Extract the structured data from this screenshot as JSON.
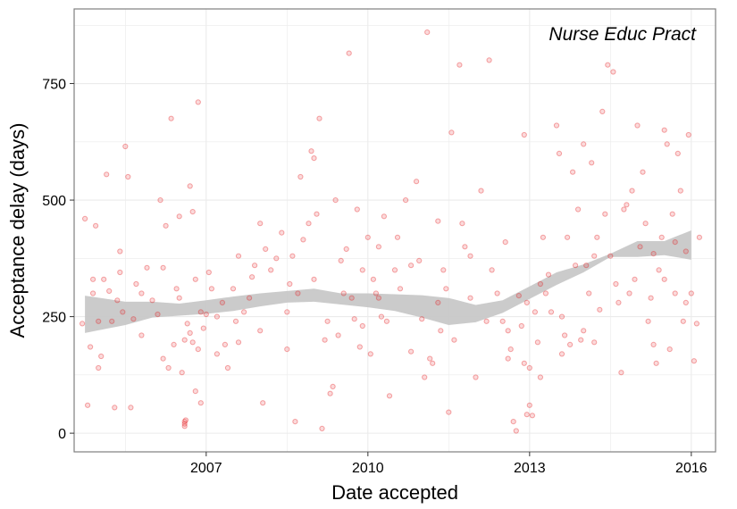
{
  "chart_data": {
    "type": "scatter",
    "title": "",
    "annotation": "Nurse Educ Pract",
    "xlabel": "Date accepted",
    "ylabel": "Acceptance delay (days)",
    "xlim": [
      2004.55,
      2016.45
    ],
    "ylim": [
      -40,
      910
    ],
    "x_ticks": [
      2007,
      2010,
      2013,
      2016
    ],
    "x_tick_labels": [
      "2007",
      "2010",
      "2013",
      "2016"
    ],
    "y_ticks": [
      0,
      250,
      500,
      750
    ],
    "y_tick_labels": [
      "0",
      "250",
      "500",
      "750"
    ],
    "grid": true,
    "legend": "none",
    "colors": {
      "points": "#e41a1c",
      "smooth_band": "#c8c8c8",
      "panel_border": "#7f7f7f",
      "grid": "#ebebeb"
    },
    "series": [
      {
        "points": [
          [
            2004.7,
            235
          ],
          [
            2004.75,
            460
          ],
          [
            2004.8,
            60
          ],
          [
            2004.85,
            185
          ],
          [
            2004.9,
            300
          ],
          [
            2004.95,
            445
          ],
          [
            2005.0,
            140
          ],
          [
            2005.05,
            165
          ],
          [
            2005.1,
            330
          ],
          [
            2005.15,
            555
          ],
          [
            2005.2,
            305
          ],
          [
            2005.25,
            240
          ],
          [
            2005.3,
            55
          ],
          [
            2005.35,
            285
          ],
          [
            2005.4,
            345
          ],
          [
            2005.45,
            260
          ],
          [
            2005.5,
            615
          ],
          [
            2005.55,
            550
          ],
          [
            2005.6,
            55
          ],
          [
            2005.65,
            245
          ],
          [
            2005.7,
            320
          ],
          [
            2005.8,
            300
          ],
          [
            2005.9,
            355
          ],
          [
            2006.0,
            285
          ],
          [
            2006.1,
            255
          ],
          [
            2006.15,
            500
          ],
          [
            2006.2,
            355
          ],
          [
            2006.25,
            445
          ],
          [
            2006.3,
            140
          ],
          [
            2006.35,
            675
          ],
          [
            2006.4,
            190
          ],
          [
            2006.45,
            310
          ],
          [
            2006.5,
            465
          ],
          [
            2006.55,
            130
          ],
          [
            2006.6,
            200
          ],
          [
            2006.65,
            235
          ],
          [
            2006.7,
            530
          ],
          [
            2006.75,
            195
          ],
          [
            2006.8,
            90
          ],
          [
            2006.85,
            180
          ],
          [
            2006.9,
            65
          ],
          [
            2006.95,
            225
          ],
          [
            2007.0,
            255
          ],
          [
            2007.05,
            345
          ],
          [
            2006.6,
            25
          ],
          [
            2006.6,
            20
          ],
          [
            2006.6,
            15
          ],
          [
            2006.62,
            28
          ],
          [
            2006.7,
            215
          ],
          [
            2006.75,
            475
          ],
          [
            2006.8,
            330
          ],
          [
            2006.85,
            710
          ],
          [
            2006.9,
            260
          ],
          [
            2007.1,
            310
          ],
          [
            2007.2,
            250
          ],
          [
            2007.3,
            280
          ],
          [
            2007.35,
            190
          ],
          [
            2007.4,
            140
          ],
          [
            2007.5,
            310
          ],
          [
            2007.55,
            240
          ],
          [
            2007.6,
            195
          ],
          [
            2007.7,
            260
          ],
          [
            2007.8,
            290
          ],
          [
            2007.85,
            335
          ],
          [
            2007.9,
            360
          ],
          [
            2008.0,
            450
          ],
          [
            2008.05,
            65
          ],
          [
            2008.1,
            395
          ],
          [
            2008.2,
            350
          ],
          [
            2008.3,
            375
          ],
          [
            2008.4,
            430
          ],
          [
            2008.5,
            260
          ],
          [
            2008.55,
            320
          ],
          [
            2008.6,
            380
          ],
          [
            2008.65,
            25
          ],
          [
            2008.7,
            300
          ],
          [
            2008.75,
            550
          ],
          [
            2008.8,
            415
          ],
          [
            2008.9,
            450
          ],
          [
            2008.95,
            605
          ],
          [
            2009.0,
            590
          ],
          [
            2009.05,
            470
          ],
          [
            2009.1,
            675
          ],
          [
            2009.15,
            10
          ],
          [
            2009.2,
            200
          ],
          [
            2009.25,
            240
          ],
          [
            2009.3,
            85
          ],
          [
            2009.35,
            100
          ],
          [
            2009.4,
            500
          ],
          [
            2009.45,
            210
          ],
          [
            2009.5,
            370
          ],
          [
            2009.55,
            300
          ],
          [
            2009.6,
            395
          ],
          [
            2009.65,
            815
          ],
          [
            2009.7,
            290
          ],
          [
            2009.75,
            245
          ],
          [
            2009.8,
            480
          ],
          [
            2009.85,
            185
          ],
          [
            2009.9,
            350
          ],
          [
            2010.0,
            420
          ],
          [
            2010.05,
            170
          ],
          [
            2010.1,
            330
          ],
          [
            2010.15,
            300
          ],
          [
            2010.2,
            400
          ],
          [
            2010.25,
            250
          ],
          [
            2010.3,
            465
          ],
          [
            2010.35,
            240
          ],
          [
            2010.4,
            80
          ],
          [
            2010.5,
            350
          ],
          [
            2010.55,
            420
          ],
          [
            2010.6,
            310
          ],
          [
            2010.7,
            500
          ],
          [
            2010.8,
            175
          ],
          [
            2010.9,
            540
          ],
          [
            2010.95,
            370
          ],
          [
            2011.0,
            245
          ],
          [
            2011.05,
            120
          ],
          [
            2011.1,
            860
          ],
          [
            2011.15,
            160
          ],
          [
            2011.2,
            150
          ],
          [
            2011.3,
            455
          ],
          [
            2011.35,
            220
          ],
          [
            2011.4,
            350
          ],
          [
            2011.45,
            310
          ],
          [
            2011.5,
            45
          ],
          [
            2011.55,
            645
          ],
          [
            2011.6,
            200
          ],
          [
            2011.7,
            790
          ],
          [
            2011.75,
            450
          ],
          [
            2011.8,
            400
          ],
          [
            2011.9,
            290
          ],
          [
            2012.0,
            120
          ],
          [
            2012.1,
            520
          ],
          [
            2012.2,
            240
          ],
          [
            2012.25,
            800
          ],
          [
            2012.3,
            350
          ],
          [
            2012.4,
            300
          ],
          [
            2012.5,
            240
          ],
          [
            2012.55,
            410
          ],
          [
            2012.6,
            160
          ],
          [
            2012.65,
            180
          ],
          [
            2012.7,
            25
          ],
          [
            2012.75,
            5
          ],
          [
            2012.8,
            295
          ],
          [
            2012.85,
            230
          ],
          [
            2012.9,
            640
          ],
          [
            2012.95,
            280
          ],
          [
            2013.0,
            140
          ],
          [
            2013.05,
            38
          ],
          [
            2013.1,
            260
          ],
          [
            2013.15,
            195
          ],
          [
            2013.2,
            120
          ],
          [
            2013.25,
            420
          ],
          [
            2013.3,
            300
          ],
          [
            2013.35,
            340
          ],
          [
            2013.4,
            260
          ],
          [
            2013.5,
            660
          ],
          [
            2013.55,
            600
          ],
          [
            2013.6,
            170
          ],
          [
            2013.65,
            210
          ],
          [
            2013.7,
            420
          ],
          [
            2013.75,
            190
          ],
          [
            2013.8,
            560
          ],
          [
            2013.85,
            360
          ],
          [
            2013.9,
            480
          ],
          [
            2013.95,
            200
          ],
          [
            2014.0,
            620
          ],
          [
            2014.05,
            360
          ],
          [
            2014.1,
            300
          ],
          [
            2014.15,
            580
          ],
          [
            2014.2,
            195
          ],
          [
            2014.25,
            420
          ],
          [
            2014.3,
            265
          ],
          [
            2014.35,
            690
          ],
          [
            2014.4,
            470
          ],
          [
            2014.45,
            790
          ],
          [
            2014.5,
            380
          ],
          [
            2014.55,
            775
          ],
          [
            2014.6,
            320
          ],
          [
            2014.65,
            280
          ],
          [
            2014.7,
            130
          ],
          [
            2014.75,
            480
          ],
          [
            2014.8,
            490
          ],
          [
            2014.85,
            300
          ],
          [
            2014.9,
            520
          ],
          [
            2014.95,
            330
          ],
          [
            2015.0,
            660
          ],
          [
            2015.05,
            400
          ],
          [
            2015.1,
            560
          ],
          [
            2015.15,
            450
          ],
          [
            2015.2,
            240
          ],
          [
            2015.25,
            290
          ],
          [
            2015.3,
            190
          ],
          [
            2015.35,
            150
          ],
          [
            2015.4,
            350
          ],
          [
            2015.45,
            420
          ],
          [
            2015.5,
            650
          ],
          [
            2015.55,
            620
          ],
          [
            2015.6,
            180
          ],
          [
            2015.65,
            470
          ],
          [
            2015.7,
            300
          ],
          [
            2015.75,
            600
          ],
          [
            2015.8,
            520
          ],
          [
            2015.85,
            240
          ],
          [
            2015.9,
            390
          ],
          [
            2015.95,
            640
          ],
          [
            2016.0,
            300
          ],
          [
            2016.05,
            155
          ],
          [
            2016.1,
            235
          ],
          [
            2016.15,
            420
          ],
          [
            2015.3,
            385
          ],
          [
            2015.5,
            330
          ],
          [
            2015.7,
            410
          ],
          [
            2015.9,
            280
          ],
          [
            2014.0,
            220
          ],
          [
            2014.2,
            380
          ],
          [
            2013.2,
            320
          ],
          [
            2013.6,
            250
          ],
          [
            2012.6,
            220
          ],
          [
            2012.9,
            150
          ],
          [
            2012.95,
            40
          ],
          [
            2013.0,
            60
          ],
          [
            2011.9,
            380
          ],
          [
            2011.3,
            280
          ],
          [
            2010.8,
            360
          ],
          [
            2010.2,
            290
          ],
          [
            2009.9,
            230
          ],
          [
            2009.0,
            330
          ],
          [
            2008.5,
            180
          ],
          [
            2008.0,
            220
          ],
          [
            2007.6,
            380
          ],
          [
            2007.2,
            170
          ],
          [
            2006.5,
            290
          ],
          [
            2006.2,
            160
          ],
          [
            2005.8,
            210
          ],
          [
            2005.4,
            390
          ],
          [
            2005.0,
            240
          ],
          [
            2004.9,
            330
          ]
        ]
      }
    ],
    "smooth_band": {
      "x": [
        2004.75,
        2005.5,
        2006.0,
        2006.5,
        2007.0,
        2007.5,
        2008.0,
        2008.5,
        2009.0,
        2009.5,
        2010.0,
        2010.5,
        2011.0,
        2011.5,
        2012.0,
        2012.5,
        2013.0,
        2013.5,
        2014.0,
        2014.5,
        2015.0,
        2015.5,
        2016.0
      ],
      "lower": [
        215,
        232,
        248,
        252,
        256,
        262,
        272,
        280,
        282,
        276,
        270,
        262,
        248,
        232,
        238,
        258,
        288,
        318,
        345,
        378,
        378,
        382,
        372
      ],
      "upper": [
        295,
        282,
        282,
        278,
        285,
        293,
        300,
        305,
        310,
        300,
        300,
        298,
        296,
        290,
        275,
        285,
        315,
        345,
        362,
        385,
        412,
        412,
        435
      ]
    }
  }
}
